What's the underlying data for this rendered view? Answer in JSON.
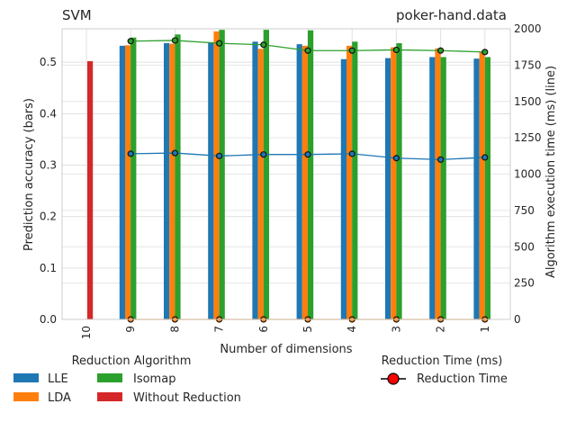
{
  "chart_data": {
    "type": "bar",
    "title_left": "SVM",
    "title_right": "poker-hand.data",
    "xlabel": "Number of dimensions",
    "ylabel": "Prediction accuracy (bars)",
    "y2label": "Algorithm execution time (ms) (line)",
    "categories": [
      "10",
      "9",
      "8",
      "7",
      "6",
      "5",
      "4",
      "3",
      "2",
      "1"
    ],
    "ylim": [
      0,
      0.565
    ],
    "yticks": [
      "0.0",
      "0.1",
      "0.2",
      "0.3",
      "0.4",
      "0.5"
    ],
    "y2lim": [
      0,
      2000
    ],
    "y2ticks": [
      "0",
      "250",
      "500",
      "750",
      "1000",
      "1250",
      "1500",
      "1750",
      "2000"
    ],
    "grid": true,
    "series": [
      {
        "name": "LLE",
        "color": "#1f77b4",
        "values": [
          null,
          0.532,
          0.537,
          0.539,
          0.54,
          0.535,
          0.506,
          0.508,
          0.51,
          0.507
        ]
      },
      {
        "name": "LDA",
        "color": "#ff7f0e",
        "values": [
          null,
          0.533,
          0.536,
          0.56,
          0.526,
          0.532,
          0.532,
          0.529,
          0.527,
          0.52
        ]
      },
      {
        "name": "Isomap",
        "color": "#2ca02c",
        "values": [
          null,
          0.548,
          0.554,
          0.563,
          0.563,
          0.562,
          0.54,
          0.537,
          0.51,
          0.51
        ]
      },
      {
        "name": "Without Reduction",
        "color": "#d62728",
        "values": [
          0.502,
          null,
          null,
          null,
          null,
          null,
          null,
          null,
          null,
          null
        ]
      }
    ],
    "lines": [
      {
        "name": "Isomap time",
        "color": "#2ca02c",
        "values": [
          null,
          1915,
          1920,
          1900,
          1890,
          1850,
          1850,
          1855,
          1850,
          1840
        ]
      },
      {
        "name": "LLE time",
        "color": "#1f77b4",
        "values": [
          null,
          1140,
          1145,
          1125,
          1135,
          1135,
          1140,
          1110,
          1100,
          1115
        ]
      },
      {
        "name": "LDA time",
        "color": "#ff7f0e",
        "values": [
          null,
          0,
          0,
          0,
          0,
          0,
          0,
          0,
          0,
          0
        ]
      }
    ],
    "legend": {
      "left_title": "Reduction Algorithm",
      "right_title": "Reduction Time (ms)",
      "right_label": "Reduction Time",
      "position": "below"
    }
  }
}
